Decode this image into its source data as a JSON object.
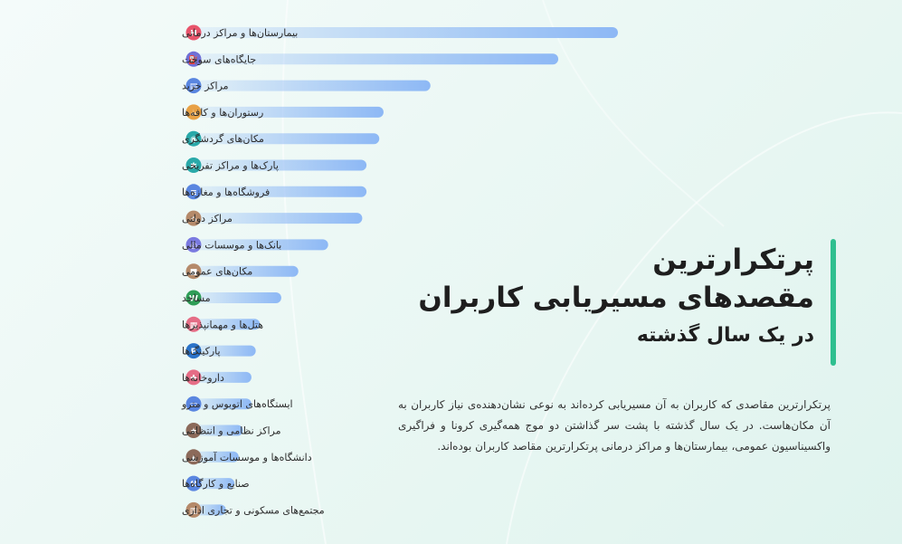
{
  "title": {
    "line1": "پرتکرارترین",
    "line2": "مقصدهای مسیریابی کاربران",
    "line3": "در یک سال گذشته"
  },
  "description": "پرتکرارترین مقاصدی که کاربران به آن مسیریابی کرده‌اند به نوعی نشان‌دهنده‌ی نیاز کاربران به آن مکان‌هاست. در یک سال گذشته با پشت سر گذاشتن دو موج همه‌گیری کرونا و فراگیری واکسیناسیون عمومی، بیمارستان‌ها و مراکز درمانی پرتکرارترین مقاصد کاربران بوده‌اند.",
  "chart_data": {
    "type": "bar",
    "orientation": "horizontal",
    "categories": [
      "بیمارستان‌ها و مراکز درمانی",
      "جایگاه‌های سوخت",
      "مراکز خرید",
      "رستوران‌ها و کافه‌ها",
      "مکان‌های گردشگری",
      "پارک‌ها و مراکز تفریحی",
      "فروشگاه‌ها و مغازه‌ها",
      "مراکز دولتی",
      "بانک‌ها و موسسات مالی",
      "مکان‌های عمومی",
      "مساجد",
      "هتل‌ها و مهمانپذیرها",
      "پارکینگ‌ها",
      "داروخانه‌ها",
      "ایستگاه‌های اتوبوس و مترو",
      "مراکز نظامی و انتظامی",
      "دانشگاه‌ها و موسسات آموزشی",
      "صنایع و کارگاه‌ها",
      "مجتمع‌های مسکونی و تجاری اداری"
    ],
    "values": [
      100,
      86,
      56,
      45,
      44,
      41,
      41,
      40,
      32,
      25,
      21,
      16,
      15,
      14,
      14,
      12,
      11,
      10,
      8
    ],
    "xlim": [
      0,
      100
    ],
    "icons": [
      {
        "name": "hospital-icon",
        "color": "#e8546b",
        "glyph": "H"
      },
      {
        "name": "fuel-icon",
        "color": "#6f6fd6",
        "glyph": "⛽"
      },
      {
        "name": "shopping-bag-icon",
        "color": "#5a86e0",
        "glyph": "▤"
      },
      {
        "name": "coffee-cup-icon",
        "color": "#e8a145",
        "glyph": "☕"
      },
      {
        "name": "camera-icon",
        "color": "#2aa9a9",
        "glyph": "◉"
      },
      {
        "name": "park-icon",
        "color": "#2aa9a9",
        "glyph": "✱"
      },
      {
        "name": "store-icon",
        "color": "#5a86e0",
        "glyph": "≡"
      },
      {
        "name": "government-icon",
        "color": "#b58a6a",
        "glyph": "⌂"
      },
      {
        "name": "bank-icon",
        "color": "#7a7ae0",
        "glyph": "◎"
      },
      {
        "name": "public-place-icon",
        "color": "#b58a6a",
        "glyph": "■"
      },
      {
        "name": "mosque-icon",
        "color": "#2f9e57",
        "glyph": "W"
      },
      {
        "name": "hotel-icon",
        "color": "#e56d86",
        "glyph": "▦"
      },
      {
        "name": "parking-icon",
        "color": "#2b73c9",
        "glyph": "P"
      },
      {
        "name": "pharmacy-icon",
        "color": "#e56d86",
        "glyph": "✚"
      },
      {
        "name": "bus-icon",
        "color": "#5a86e0",
        "glyph": "▭"
      },
      {
        "name": "military-icon",
        "color": "#8c6a5a",
        "glyph": "★"
      },
      {
        "name": "education-icon",
        "color": "#8c6a5a",
        "glyph": "▲"
      },
      {
        "name": "industry-icon",
        "color": "#5a86e0",
        "glyph": "⚒"
      },
      {
        "name": "residential-complex-icon",
        "color": "#b58a6a",
        "glyph": "▥"
      }
    ],
    "bar_color": "#8db8f5",
    "grid": false,
    "legend": "none"
  }
}
